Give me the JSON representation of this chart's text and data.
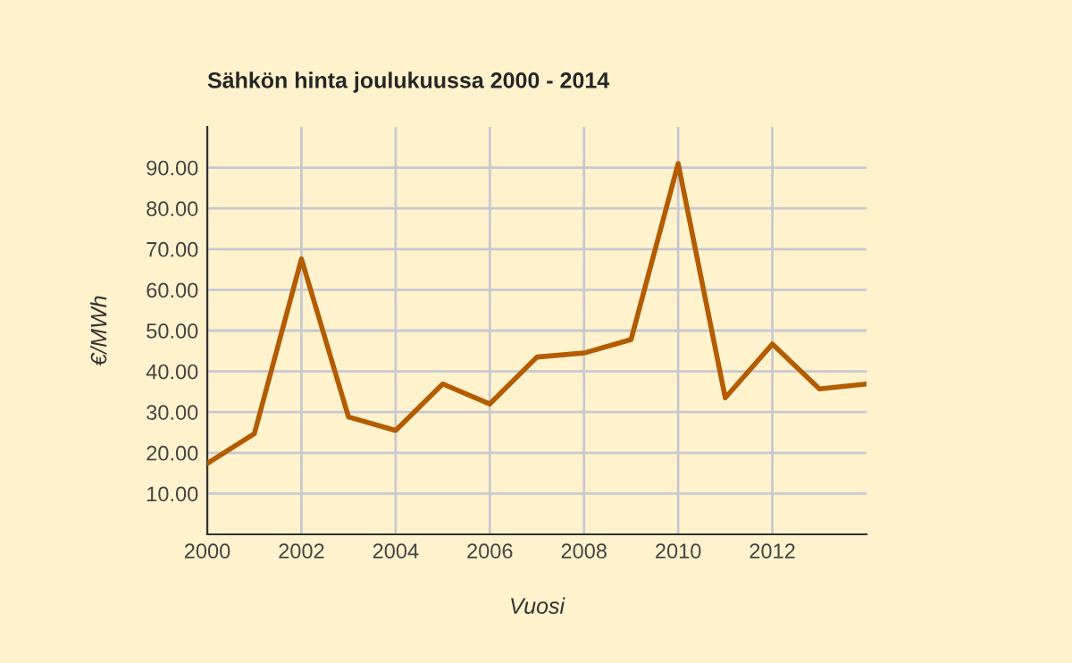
{
  "chart_data": {
    "type": "line",
    "title": "Sähkön hinta joulukuussa 2000 - 2014",
    "xlabel": "Vuosi",
    "ylabel": "€/MWh",
    "x": [
      2000,
      2001,
      2002,
      2003,
      2004,
      2005,
      2006,
      2007,
      2008,
      2009,
      2010,
      2011,
      2012,
      2013,
      2014
    ],
    "series": [
      {
        "color": "#b35c00",
        "values": [
          17.4,
          24.7,
          67.6,
          28.8,
          25.5,
          36.9,
          32.0,
          43.5,
          44.5,
          47.8,
          91.0,
          33.5,
          46.7,
          35.7,
          36.9
        ]
      }
    ],
    "xlim": [
      2000,
      2014
    ],
    "xticks": [
      2000,
      2002,
      2004,
      2006,
      2008,
      2010,
      2012
    ],
    "ylim": [
      0,
      100
    ],
    "yticks": [
      {
        "value": 10,
        "label": "10.00"
      },
      {
        "value": 20,
        "label": "20.00"
      },
      {
        "value": 30,
        "label": "30.00"
      },
      {
        "value": 40,
        "label": "40.00"
      },
      {
        "value": 50,
        "label": "50.00"
      },
      {
        "value": 60,
        "label": "60.00"
      },
      {
        "value": 70,
        "label": "70.00"
      },
      {
        "value": 80,
        "label": "80.00"
      },
      {
        "value": 90,
        "label": "90.00"
      }
    ],
    "grid": true,
    "legend": false,
    "marker": "none",
    "line_style": "solid"
  }
}
